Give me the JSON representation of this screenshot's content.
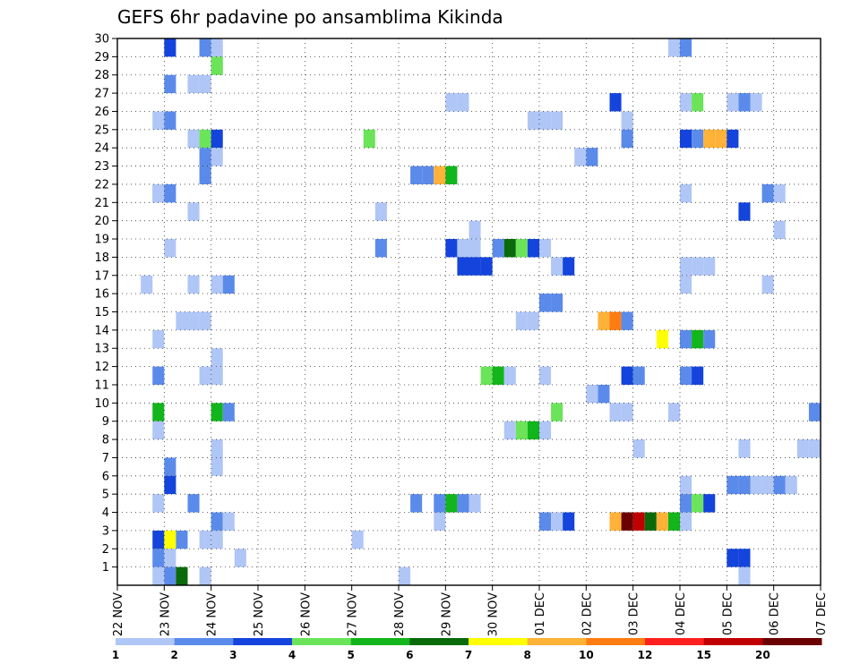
{
  "chart_data": {
    "type": "heatmap",
    "title": "GEFS 6hr padavine po ansamblima Kikinda",
    "xlabel": "",
    "ylabel": "",
    "x_tick_labels": [
      "22 NOV",
      "23 NOV",
      "24 NOV",
      "25 NOV",
      "26 NOV",
      "27 NOV",
      "28 NOV",
      "29 NOV",
      "30 NOV",
      "01 DEC",
      "02 DEC",
      "03 DEC",
      "04 DEC",
      "05 DEC",
      "06 DEC",
      "07 DEC"
    ],
    "x_range_steps": [
      0,
      60
    ],
    "y_range": [
      0,
      30
    ],
    "y_ticks": [
      1,
      2,
      3,
      4,
      5,
      6,
      7,
      8,
      9,
      10,
      11,
      12,
      13,
      14,
      15,
      16,
      17,
      18,
      19,
      20,
      21,
      22,
      23,
      24,
      25,
      26,
      27,
      28,
      29,
      30
    ],
    "grid": true,
    "colorbar": {
      "position": "bottom",
      "tick_labels": [
        "1",
        "2",
        "3",
        "4",
        "5",
        "6",
        "7",
        "8",
        "10",
        "12",
        "15",
        "20"
      ],
      "colors": [
        "#b0c6f7",
        "#5b8bea",
        "#1444dc",
        "#6be45a",
        "#12b51b",
        "#0a6a0a",
        "#ffff00",
        "#ffb238",
        "#ff7c12",
        "#ff1f1f",
        "#c00000",
        "#6b0000"
      ]
    },
    "cells_format": "[time_step, member, color_index]",
    "cells": [
      [
        4,
        29,
        2
      ],
      [
        7,
        29,
        1
      ],
      [
        8,
        29,
        0
      ],
      [
        47,
        29,
        0
      ],
      [
        48,
        29,
        1
      ],
      [
        8,
        28,
        0
      ],
      [
        8,
        28,
        3
      ],
      [
        4,
        27,
        1
      ],
      [
        6,
        27,
        0
      ],
      [
        7,
        27,
        0
      ],
      [
        28,
        26,
        0
      ],
      [
        29,
        26,
        0
      ],
      [
        42,
        26,
        2
      ],
      [
        48,
        26,
        0
      ],
      [
        49,
        26,
        3
      ],
      [
        52,
        26,
        0
      ],
      [
        53,
        26,
        1
      ],
      [
        54,
        26,
        0
      ],
      [
        3,
        25,
        0
      ],
      [
        4,
        25,
        1
      ],
      [
        35,
        25,
        0
      ],
      [
        36,
        25,
        0
      ],
      [
        37,
        25,
        0
      ],
      [
        43,
        25,
        0
      ],
      [
        6,
        24,
        0
      ],
      [
        7,
        24,
        3
      ],
      [
        8,
        24,
        2
      ],
      [
        21,
        24,
        3
      ],
      [
        43,
        24,
        1
      ],
      [
        48,
        24,
        2
      ],
      [
        49,
        24,
        1
      ],
      [
        50,
        24,
        7
      ],
      [
        51,
        24,
        7
      ],
      [
        52,
        24,
        2
      ],
      [
        7,
        23,
        1
      ],
      [
        8,
        23,
        0
      ],
      [
        39,
        23,
        0
      ],
      [
        40,
        23,
        1
      ],
      [
        7,
        22,
        1
      ],
      [
        25,
        22,
        1
      ],
      [
        26,
        22,
        1
      ],
      [
        27,
        22,
        7
      ],
      [
        28,
        22,
        4
      ],
      [
        3,
        21,
        0
      ],
      [
        3,
        21,
        0
      ],
      [
        4,
        21,
        1
      ],
      [
        48,
        21,
        0
      ],
      [
        55,
        21,
        1
      ],
      [
        56,
        21,
        0
      ],
      [
        6,
        20,
        0
      ],
      [
        22,
        20,
        0
      ],
      [
        53,
        20,
        2
      ],
      [
        30,
        19,
        0
      ],
      [
        56,
        19,
        0
      ],
      [
        28,
        18,
        2
      ],
      [
        29,
        18,
        0
      ],
      [
        30,
        18,
        0
      ],
      [
        32,
        18,
        1
      ],
      [
        33,
        18,
        5
      ],
      [
        34,
        18,
        3
      ],
      [
        35,
        18,
        2
      ],
      [
        36,
        18,
        0
      ],
      [
        22,
        18,
        1
      ],
      [
        4,
        18,
        0
      ],
      [
        29,
        17,
        2
      ],
      [
        30,
        17,
        2
      ],
      [
        31,
        17,
        2
      ],
      [
        37,
        17,
        0
      ],
      [
        38,
        17,
        2
      ],
      [
        48,
        17,
        0
      ],
      [
        49,
        17,
        0
      ],
      [
        50,
        17,
        0
      ],
      [
        2,
        16,
        0
      ],
      [
        6,
        16,
        0
      ],
      [
        8,
        16,
        0
      ],
      [
        9,
        16,
        1
      ],
      [
        48,
        16,
        0
      ],
      [
        55,
        16,
        0
      ],
      [
        36,
        15,
        1
      ],
      [
        37,
        15,
        1
      ],
      [
        5,
        14,
        0
      ],
      [
        6,
        14,
        0
      ],
      [
        7,
        14,
        0
      ],
      [
        34,
        14,
        0
      ],
      [
        35,
        14,
        0
      ],
      [
        41,
        14,
        7
      ],
      [
        42,
        14,
        8
      ],
      [
        43,
        14,
        1
      ],
      [
        3,
        13,
        0
      ],
      [
        46,
        13,
        6
      ],
      [
        48,
        13,
        1
      ],
      [
        49,
        13,
        4
      ],
      [
        50,
        13,
        1
      ],
      [
        8,
        12,
        0
      ],
      [
        3,
        11,
        1
      ],
      [
        7,
        11,
        0
      ],
      [
        8,
        11,
        0
      ],
      [
        31,
        11,
        3
      ],
      [
        32,
        11,
        4
      ],
      [
        33,
        11,
        0
      ],
      [
        36,
        11,
        0
      ],
      [
        43,
        11,
        2
      ],
      [
        44,
        11,
        1
      ],
      [
        48,
        11,
        1
      ],
      [
        49,
        11,
        2
      ],
      [
        40,
        10,
        0
      ],
      [
        41,
        10,
        1
      ],
      [
        3,
        9,
        4
      ],
      [
        8,
        9,
        4
      ],
      [
        9,
        9,
        1
      ],
      [
        37,
        9,
        3
      ],
      [
        42,
        9,
        0
      ],
      [
        43,
        9,
        0
      ],
      [
        47,
        9,
        0
      ],
      [
        59,
        9,
        1
      ],
      [
        3,
        8,
        0
      ],
      [
        33,
        8,
        0
      ],
      [
        34,
        8,
        3
      ],
      [
        35,
        8,
        4
      ],
      [
        36,
        8,
        0
      ],
      [
        8,
        7,
        0
      ],
      [
        44,
        7,
        0
      ],
      [
        53,
        7,
        0
      ],
      [
        58,
        7,
        0
      ],
      [
        59,
        7,
        0
      ],
      [
        4,
        6,
        1
      ],
      [
        8,
        6,
        0
      ],
      [
        4,
        5,
        2
      ],
      [
        48,
        5,
        0
      ],
      [
        52,
        5,
        1
      ],
      [
        53,
        5,
        1
      ],
      [
        54,
        5,
        0
      ],
      [
        55,
        5,
        0
      ],
      [
        56,
        5,
        1
      ],
      [
        57,
        5,
        0
      ],
      [
        3,
        4,
        0
      ],
      [
        6,
        4,
        1
      ],
      [
        25,
        4,
        1
      ],
      [
        27,
        4,
        1
      ],
      [
        28,
        4,
        4
      ],
      [
        29,
        4,
        1
      ],
      [
        30,
        4,
        0
      ],
      [
        48,
        4,
        1
      ],
      [
        49,
        4,
        3
      ],
      [
        50,
        4,
        2
      ],
      [
        8,
        3,
        1
      ],
      [
        9,
        3,
        0
      ],
      [
        27,
        3,
        0
      ],
      [
        36,
        3,
        1
      ],
      [
        37,
        3,
        0
      ],
      [
        38,
        3,
        2
      ],
      [
        42,
        3,
        7
      ],
      [
        43,
        3,
        11
      ],
      [
        44,
        3,
        10
      ],
      [
        45,
        3,
        5
      ],
      [
        46,
        3,
        7
      ],
      [
        47,
        3,
        4
      ],
      [
        48,
        3,
        0
      ],
      [
        3,
        2,
        2
      ],
      [
        4,
        2,
        6
      ],
      [
        5,
        2,
        1
      ],
      [
        7,
        2,
        0
      ],
      [
        8,
        2,
        0
      ],
      [
        20,
        2,
        0
      ],
      [
        3,
        1,
        1
      ],
      [
        4,
        1,
        0
      ],
      [
        10,
        1,
        0
      ],
      [
        52,
        1,
        2
      ],
      [
        53,
        1,
        2
      ],
      [
        3,
        0,
        0
      ],
      [
        4,
        0,
        1
      ],
      [
        5,
        0,
        5
      ],
      [
        7,
        0,
        0
      ],
      [
        24,
        0,
        0
      ],
      [
        53,
        0,
        0
      ]
    ]
  }
}
